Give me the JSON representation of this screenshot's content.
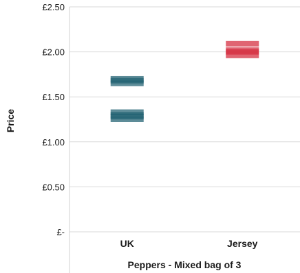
{
  "chart_data": {
    "type": "scatter",
    "marker": "dash",
    "xlabel": "Peppers - Mixed bag of 3",
    "ylabel": "Price",
    "categories": [
      "UK",
      "Jersey"
    ],
    "y_ticks": [
      "£-",
      "£0.50",
      "£1.00",
      "£1.50",
      "£2.00",
      "£2.50"
    ],
    "ylim": [
      0,
      2.5
    ],
    "grid": true,
    "legend": "none",
    "series": [
      {
        "category": "UK",
        "color": "#1f5f70",
        "values": [
          1.25,
          1.28,
          1.3,
          1.33,
          1.65,
          1.68,
          1.7
        ]
      },
      {
        "category": "Jersey",
        "color": "#d42a3c",
        "values": [
          1.96,
          2.0,
          2.02,
          2.09
        ]
      }
    ]
  }
}
